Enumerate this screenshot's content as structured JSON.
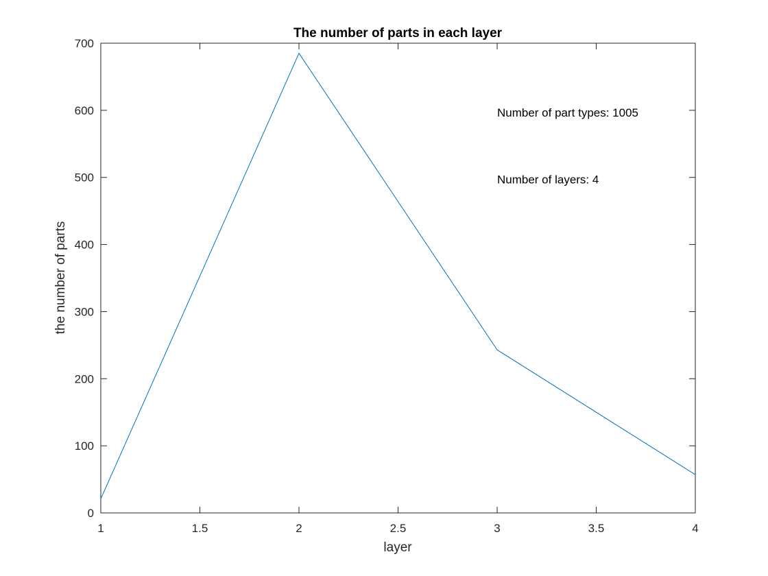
{
  "chart_data": {
    "type": "line",
    "title": "The number of parts in each layer",
    "xlabel": "layer",
    "ylabel": "the number of parts",
    "xlim": [
      1,
      4
    ],
    "ylim": [
      0,
      700
    ],
    "xticks": [
      1,
      1.5,
      2,
      2.5,
      3,
      3.5,
      4
    ],
    "xtick_labels": [
      "1",
      "1.5",
      "2",
      "2.5",
      "3",
      "3.5",
      "4"
    ],
    "yticks": [
      0,
      100,
      200,
      300,
      400,
      500,
      600,
      700
    ],
    "ytick_labels": [
      "0",
      "100",
      "200",
      "300",
      "400",
      "500",
      "600",
      "700"
    ],
    "grid": false,
    "series": [
      {
        "x": [
          1,
          2,
          3,
          4
        ],
        "y": [
          21,
          685,
          243,
          57
        ],
        "color": "#0072BD"
      }
    ],
    "annotations": [
      {
        "text": "Number of part types: 1005",
        "x": 3,
        "y": 597
      },
      {
        "text": "Number of layers: 4",
        "x": 3,
        "y": 497
      }
    ]
  }
}
